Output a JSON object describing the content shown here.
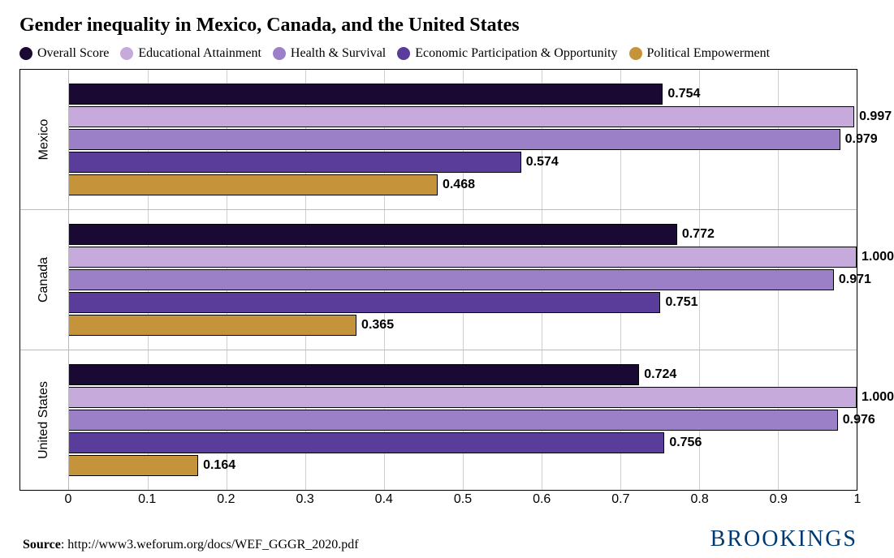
{
  "title": "Gender inequality in Mexico, Canada, and the United States",
  "legend": [
    {
      "label": "Overall Score",
      "color": "#1a0a33"
    },
    {
      "label": "Educational Attainment",
      "color": "#c6aadb"
    },
    {
      "label": "Health & Survival",
      "color": "#9b7fc7"
    },
    {
      "label": "Economic Participation & Opportunity",
      "color": "#5a3c9b"
    },
    {
      "label": "Political Empowerment",
      "color": "#c4933a"
    }
  ],
  "xmin": 0,
  "xmax": 1,
  "xtick_step": 0.1,
  "groups": [
    {
      "name": "Mexico",
      "bars": [
        {
          "value": 0.754,
          "series": 0
        },
        {
          "value": 0.997,
          "series": 1
        },
        {
          "value": 0.979,
          "series": 2
        },
        {
          "value": 0.574,
          "series": 3
        },
        {
          "value": 0.468,
          "series": 4
        }
      ]
    },
    {
      "name": "Canada",
      "bars": [
        {
          "value": 0.772,
          "series": 0
        },
        {
          "value": 1.0,
          "series": 1
        },
        {
          "value": 0.971,
          "series": 2
        },
        {
          "value": 0.751,
          "series": 3
        },
        {
          "value": 0.365,
          "series": 4
        }
      ]
    },
    {
      "name": "United States",
      "bars": [
        {
          "value": 0.724,
          "series": 0
        },
        {
          "value": 1.0,
          "series": 1
        },
        {
          "value": 0.976,
          "series": 2
        },
        {
          "value": 0.756,
          "series": 3
        },
        {
          "value": 0.164,
          "series": 4
        }
      ]
    }
  ],
  "source_label": "Source",
  "source_url": "http://www3.weforum.org/docs/WEF_GGGR_2020.pdf",
  "brand": "BROOKINGS",
  "grid_color": "#cfcfcf",
  "background_color": "#ffffff",
  "bar_border_color": "#000000",
  "title_fontsize": 24,
  "legend_fontsize": 16,
  "axis_fontsize": 16,
  "label_fontsize": 16
}
